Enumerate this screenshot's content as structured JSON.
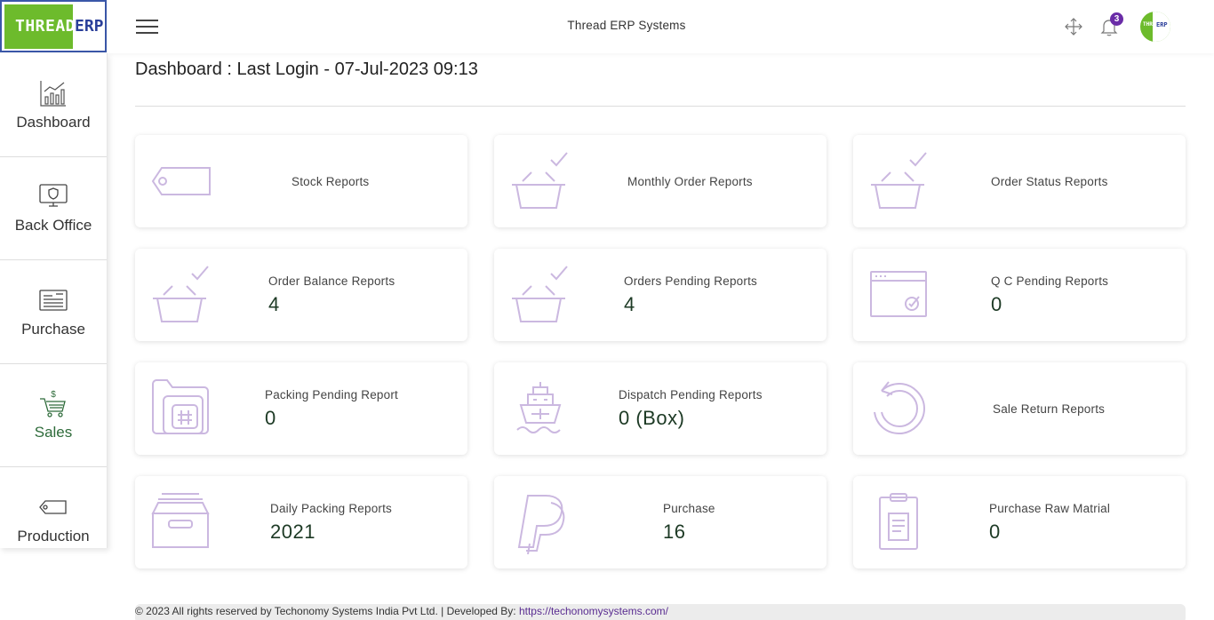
{
  "logo": {
    "left_text": "THREAD",
    "right_text": "ERP"
  },
  "header": {
    "app_title": "Thread ERP Systems",
    "notification_count": "3"
  },
  "avatar": {
    "left_text": "THREAD",
    "right_text": "ERP"
  },
  "sidebar": {
    "items": [
      {
        "label": "Dashboard",
        "icon": "chart-icon"
      },
      {
        "label": "Back Office",
        "icon": "monitor-shield-icon"
      },
      {
        "label": "Purchase",
        "icon": "document-icon"
      },
      {
        "label": "Sales",
        "icon": "cart-dollar-icon"
      },
      {
        "label": "Production",
        "icon": "tag-icon"
      }
    ]
  },
  "page": {
    "title": "Dashboard : Last Login - 07-Jul-2023 09:13"
  },
  "cards": [
    {
      "label": "Stock Reports",
      "value": "",
      "icon": "tag-icon"
    },
    {
      "label": "Monthly Order Reports",
      "value": "",
      "icon": "basket-check-icon"
    },
    {
      "label": "Order Status Reports",
      "value": "",
      "icon": "basket-check-icon"
    },
    {
      "label": "Order Balance Reports",
      "value": "4",
      "icon": "basket-check-icon"
    },
    {
      "label": "Orders Pending Reports",
      "value": "4",
      "icon": "basket-check-icon"
    },
    {
      "label": "Q C Pending Reports",
      "value": "0",
      "icon": "browser-check-icon"
    },
    {
      "label": "Packing Pending Report",
      "value": "0",
      "icon": "folder-hash-icon"
    },
    {
      "label": "Dispatch Pending Reports",
      "value": "0 (Box)",
      "icon": "ship-icon"
    },
    {
      "label": "Sale Return Reports",
      "value": "",
      "icon": "return-arrow-icon"
    },
    {
      "label": "Daily Packing Reports",
      "value": "2021",
      "icon": "archive-box-icon"
    },
    {
      "label": "Purchase",
      "value": "16",
      "icon": "paypal-icon"
    },
    {
      "label": "Purchase Raw Matrial",
      "value": "0",
      "icon": "clipboard-icon"
    }
  ],
  "footer": {
    "text": "© 2023 All rights reserved by Techonomy Systems India Pvt Ltd. | Developed By: ",
    "link": "https://techonomysystems.com/"
  },
  "colors": {
    "accent_purple": "#6a2ca7",
    "icon_lilac": "#cbb8e0",
    "brand_green": "#6dbb2c",
    "brand_blue": "#2a3f9a"
  }
}
